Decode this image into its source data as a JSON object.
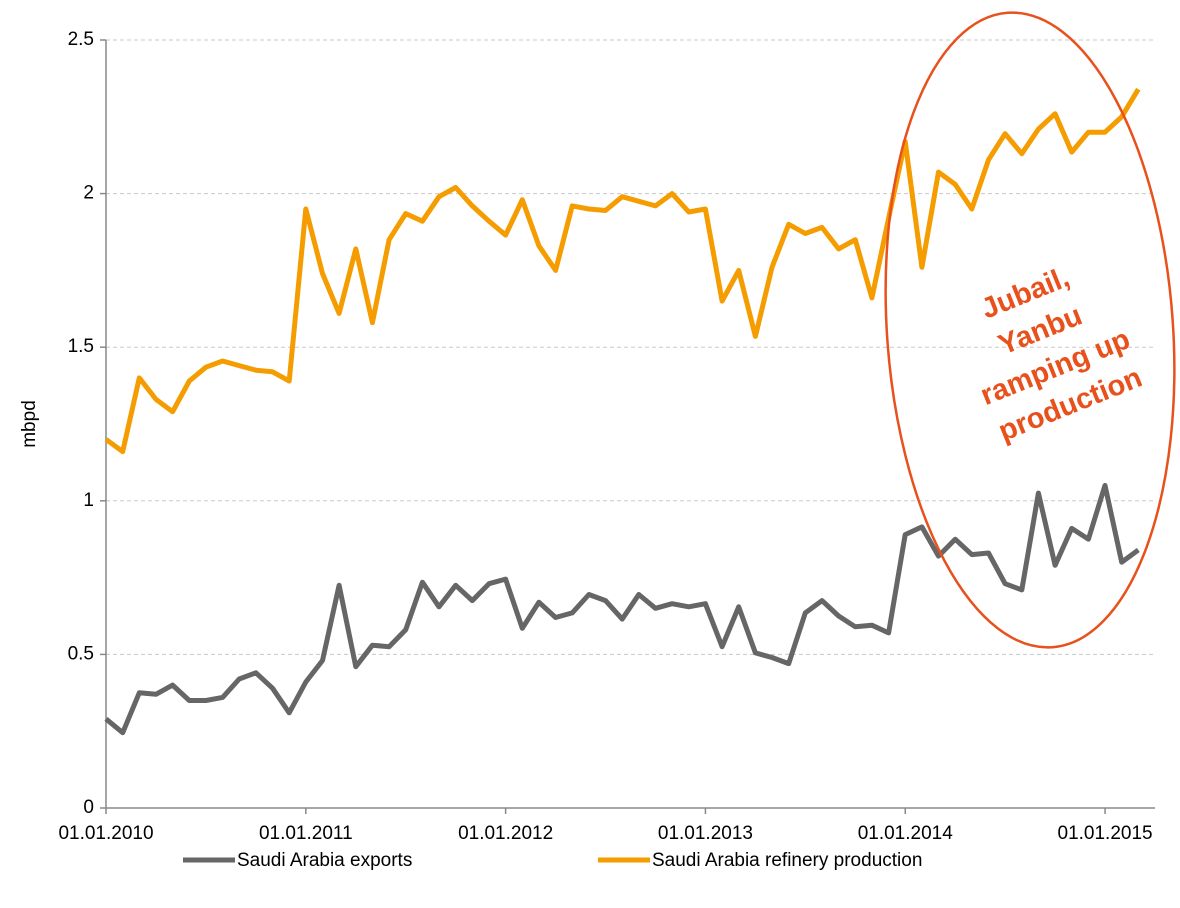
{
  "chart_data": {
    "type": "line",
    "y_label": "mbpd",
    "x": [
      "01.01.2010",
      "01.02.2010",
      "01.03.2010",
      "01.04.2010",
      "01.05.2010",
      "01.06.2010",
      "01.07.2010",
      "01.08.2010",
      "01.09.2010",
      "01.10.2010",
      "01.11.2010",
      "01.12.2010",
      "01.01.2011",
      "01.02.2011",
      "01.03.2011",
      "01.04.2011",
      "01.05.2011",
      "01.06.2011",
      "01.07.2011",
      "01.08.2011",
      "01.09.2011",
      "01.10.2011",
      "01.11.2011",
      "01.12.2011",
      "01.01.2012",
      "01.02.2012",
      "01.03.2012",
      "01.04.2012",
      "01.05.2012",
      "01.06.2012",
      "01.07.2012",
      "01.08.2012",
      "01.09.2012",
      "01.10.2012",
      "01.11.2012",
      "01.12.2012",
      "01.01.2013",
      "01.02.2013",
      "01.03.2013",
      "01.04.2013",
      "01.05.2013",
      "01.06.2013",
      "01.07.2013",
      "01.08.2013",
      "01.09.2013",
      "01.10.2013",
      "01.11.2013",
      "01.12.2013",
      "01.01.2014",
      "01.02.2014",
      "01.03.2014",
      "01.04.2014",
      "01.05.2014",
      "01.06.2014",
      "01.07.2014",
      "01.08.2014",
      "01.09.2014",
      "01.10.2014",
      "01.11.2014",
      "01.12.2014",
      "01.01.2015",
      "01.02.2015",
      "01.03.2015"
    ],
    "series": [
      {
        "name": "Saudi Arabia exports",
        "color": "#666666",
        "values": [
          0.29,
          0.245,
          0.375,
          0.37,
          0.4,
          0.35,
          0.35,
          0.36,
          0.42,
          0.44,
          0.39,
          0.31,
          0.41,
          0.48,
          0.725,
          0.46,
          0.53,
          0.525,
          0.58,
          0.735,
          0.655,
          0.725,
          0.675,
          0.73,
          0.745,
          0.585,
          0.67,
          0.62,
          0.635,
          0.695,
          0.675,
          0.615,
          0.695,
          0.65,
          0.665,
          0.655,
          0.665,
          0.525,
          0.655,
          0.505,
          0.49,
          0.47,
          0.635,
          0.675,
          0.625,
          0.59,
          0.595,
          0.57,
          0.89,
          0.915,
          0.82,
          0.875,
          0.825,
          0.83,
          0.73,
          0.71,
          1.025,
          0.79,
          0.91,
          0.875,
          1.05,
          0.8,
          0.84
        ]
      },
      {
        "name": "Saudi Arabia refinery production",
        "color": "#f59c00",
        "values": [
          1.2,
          1.16,
          1.4,
          1.33,
          1.29,
          1.39,
          1.435,
          1.455,
          1.44,
          1.425,
          1.42,
          1.39,
          1.95,
          1.74,
          1.61,
          1.82,
          1.58,
          1.85,
          1.935,
          1.91,
          1.99,
          2.02,
          1.96,
          1.91,
          1.865,
          1.98,
          1.83,
          1.75,
          1.96,
          1.95,
          1.945,
          1.99,
          1.975,
          1.96,
          2.0,
          1.94,
          1.95,
          1.65,
          1.75,
          1.535,
          1.76,
          1.9,
          1.87,
          1.89,
          1.82,
          1.85,
          1.66,
          1.92,
          2.17,
          1.76,
          2.07,
          2.03,
          1.95,
          2.11,
          2.195,
          2.13,
          2.21,
          2.26,
          2.135,
          2.2,
          2.2,
          2.25,
          2.34
        ]
      }
    ],
    "xlim": [
      "01.01.2010",
      "01.04.2015"
    ],
    "xticks": [
      "01.01.2010",
      "01.01.2011",
      "01.01.2012",
      "01.01.2013",
      "01.01.2014",
      "01.01.2015"
    ],
    "ylim": [
      0,
      2.5
    ],
    "yticks": [
      0,
      0.5,
      1,
      1.5,
      2,
      2.5
    ],
    "grid": true,
    "legend": "bottom",
    "annotation": {
      "lines": [
        "Jubail,",
        "Yanbu",
        "ramping up",
        "production"
      ],
      "color": "#e8501c"
    }
  }
}
